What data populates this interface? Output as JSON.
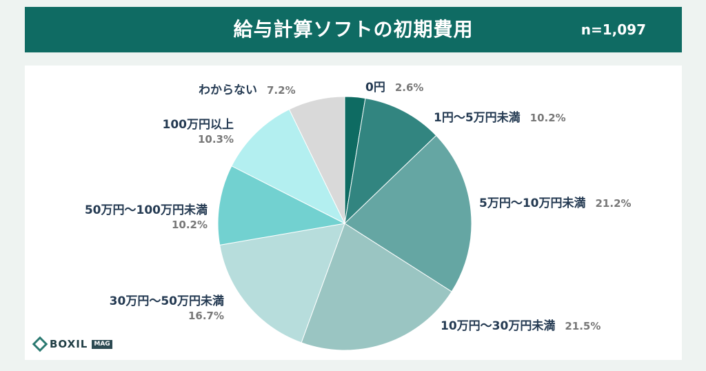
{
  "header": {
    "title": "給与計算ソフトの初期費用",
    "sample": "n=1,097"
  },
  "logo": {
    "text": "BOXIL",
    "badge": "MAG"
  },
  "chart_data": {
    "type": "pie",
    "title": "給与計算ソフトの初期費用",
    "start_angle_deg": 0,
    "direction": "clockwise",
    "slices": [
      {
        "label": "0円",
        "value": 2.6,
        "pct_text": "2.6%",
        "color": "#0e6b62"
      },
      {
        "label": "1円〜5万円未満",
        "value": 10.2,
        "pct_text": "10.2%",
        "color": "#328580"
      },
      {
        "label": "5万円〜10万円未満",
        "value": 21.2,
        "pct_text": "21.2%",
        "color": "#65a6a3"
      },
      {
        "label": "10万円〜30万円未満",
        "value": 21.5,
        "pct_text": "21.5%",
        "color": "#9ac5c2"
      },
      {
        "label": "30万円〜50万円未満",
        "value": 16.7,
        "pct_text": "16.7%",
        "color": "#b7dddc"
      },
      {
        "label": "50万円〜100万円未満",
        "value": 10.2,
        "pct_text": "10.2%",
        "color": "#72d1d0"
      },
      {
        "label": "100万円以上",
        "value": 10.3,
        "pct_text": "10.3%",
        "color": "#b3eff0"
      },
      {
        "label": "わからない",
        "value": 7.2,
        "pct_text": "7.2%",
        "color": "#d9d9d9"
      }
    ]
  }
}
